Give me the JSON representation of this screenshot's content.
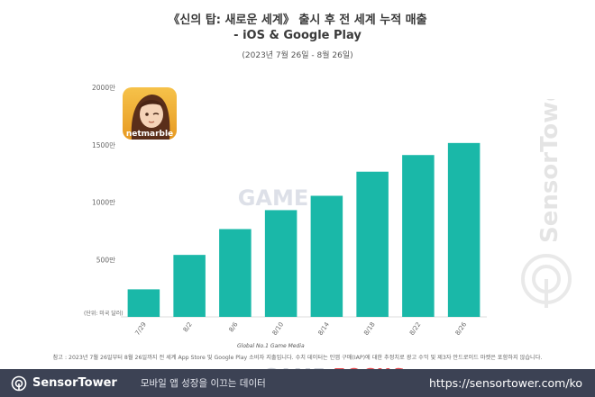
{
  "header": {
    "title_line1": "《신의 탑: 새로운 세계》 출시 후 전 세계 누적 매출",
    "title_line2": "- iOS & Google Play",
    "subtitle": "(2023년 7월 26일 - 8월 26일)"
  },
  "chart_data": {
    "type": "bar",
    "title": "《신의 탑: 새로운 세계》 출시 후 전 세계 누적 매출 - iOS & Google Play",
    "subtitle": "(2023년 7월 26일 - 8월 26일)",
    "unit_note": "(단위: 미국 달러)",
    "categories": [
      "7/29",
      "8/2",
      "8/6",
      "8/10",
      "8/14",
      "8/18",
      "8/22",
      "8/26"
    ],
    "values": [
      240,
      540,
      765,
      930,
      1055,
      1265,
      1410,
      1515
    ],
    "value_unit": "만",
    "ylim": [
      0,
      2000
    ],
    "yticks": [
      500,
      1000,
      1500,
      2000
    ],
    "ytick_labels": [
      "500만",
      "1000만",
      "1500만",
      "2000만"
    ],
    "bar_color": "#1ab8a8",
    "grid": false,
    "legend": "none"
  },
  "app_icon": {
    "brand": "netmarble"
  },
  "watermark": {
    "text": "SensorTower"
  },
  "footnote": "참고 : 2023년 7월 26일부터 8월 26일까지 전 세계 App Store 및 Google Play 소비자 지출입니다. 수치 데이터는 인앱 구매(IAP)에 대한 추정치로 광고 수익 및 제3자 안드로이드 마켓은 포함하지 않습니다.",
  "gamefocus": {
    "tagline": "Global No.1 Game Media",
    "name_a": "GAME",
    "name_b": "FOCUS"
  },
  "footer": {
    "brand": "SensorTower",
    "slogan": "모바일 앱 성장을 이끄는 데이터",
    "url": "https://sensortower.com/ko"
  }
}
